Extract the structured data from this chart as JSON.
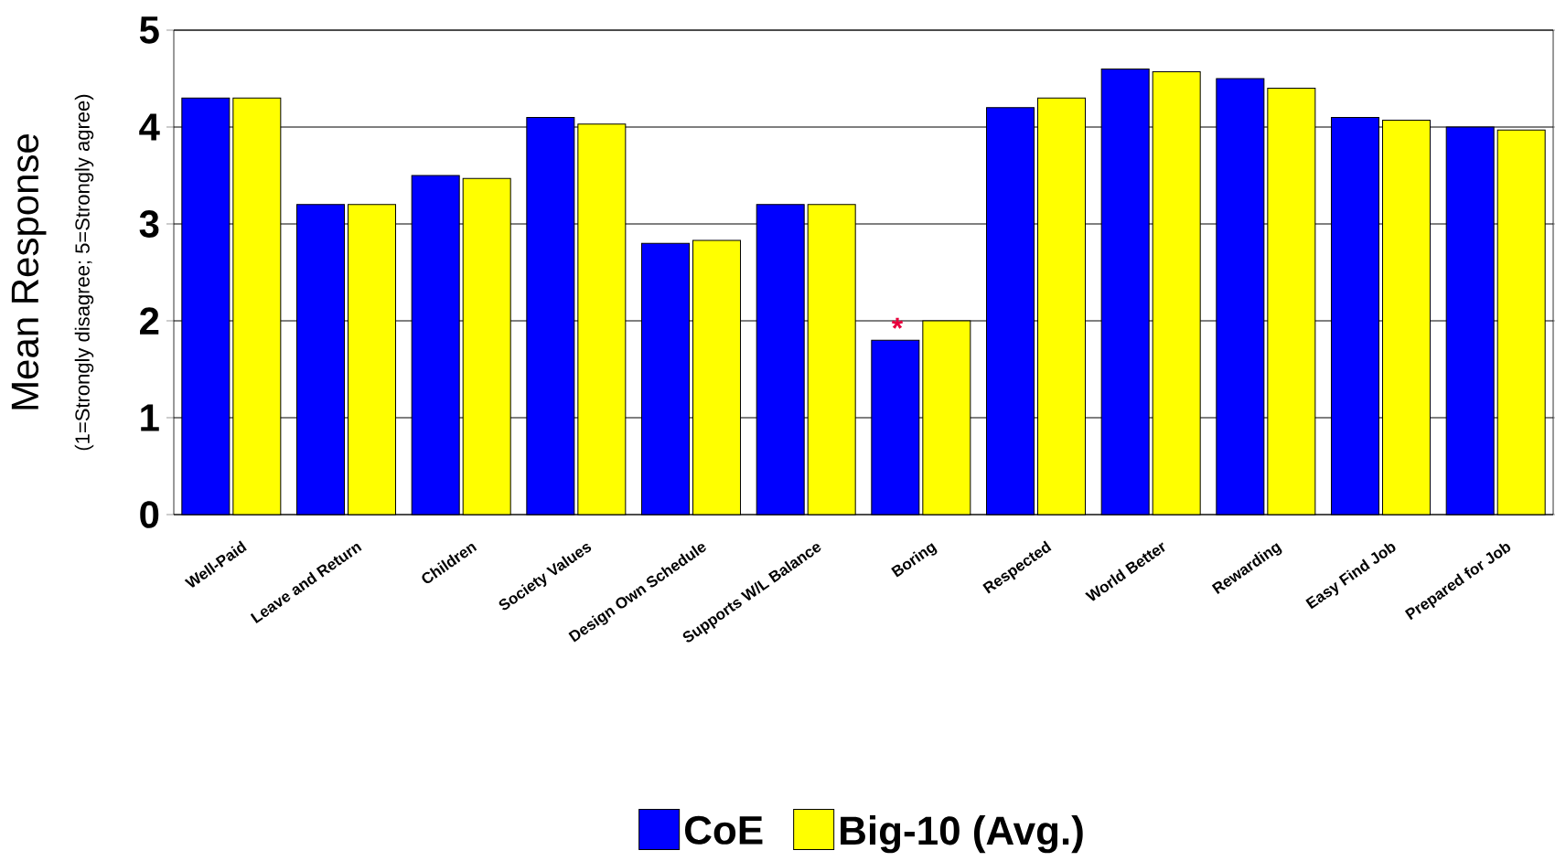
{
  "chart_data": {
    "type": "bar",
    "ylabel": "Mean Response",
    "categories": [
      "Well-Paid",
      "Leave and Return",
      "Children",
      "Society Values",
      "Design Own Schedule",
      "Supports W/L Balance",
      "Boring",
      "Respected",
      "World Better",
      "Rewarding",
      "Easy Find Job",
      "Prepared for Job"
    ],
    "series": [
      {
        "name": "CoE",
        "color": "#0000ff",
        "values": [
          4.3,
          3.2,
          3.5,
          4.1,
          2.8,
          3.2,
          1.8,
          4.2,
          4.6,
          4.5,
          4.1,
          4.0
        ]
      },
      {
        "name": "Big-10 (Avg.)",
        "color": "#ffff00",
        "values": [
          4.3,
          3.2,
          3.47,
          4.03,
          2.83,
          3.2,
          2.0,
          4.3,
          4.57,
          4.4,
          4.07,
          3.97
        ]
      }
    ],
    "annotations": [
      "(1=Strongly disagree; 5=Strongly agree)",
      "*"
    ],
    "ylim": [
      0,
      5
    ],
    "yticks": [
      0,
      1,
      2,
      3,
      4,
      5
    ],
    "grid": "y",
    "legend": "bottom"
  }
}
